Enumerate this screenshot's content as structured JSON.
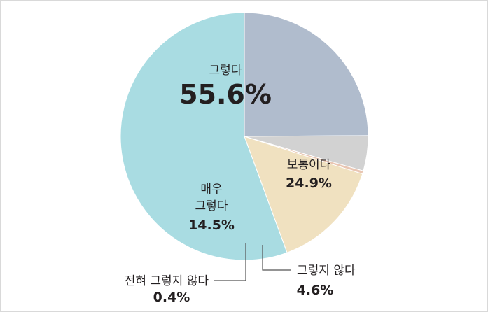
{
  "chart_data": {
    "type": "pie",
    "start_angle_deg": 0,
    "direction": "clockwise",
    "slices": [
      {
        "label": "보통이다",
        "value": 24.9,
        "value_text": "24.9%",
        "color": "#b0bccd"
      },
      {
        "label": "그렇지 않다",
        "value": 4.6,
        "value_text": "4.6%",
        "color": "#d2d2d2"
      },
      {
        "label": "전혀 그렇지 않다",
        "value": 0.4,
        "value_text": "0.4%",
        "color": "#e9c6b3"
      },
      {
        "label_lines": [
          "매우",
          "그렇다"
        ],
        "value": 14.5,
        "value_text": "14.5%",
        "color": "#f0e1c0"
      },
      {
        "label": "그렇다",
        "value": 55.6,
        "value_text": "55.6%",
        "color": "#a9dce2"
      }
    ]
  }
}
